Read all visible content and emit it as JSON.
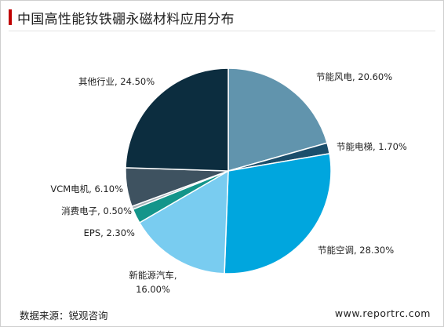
{
  "chart_data": {
    "type": "pie",
    "title": "中国高性能钕铁硼永磁材料应用分布",
    "start_angle_deg": 0,
    "direction": "clockwise",
    "legend": "none",
    "slices": [
      {
        "name": "节能风电",
        "value": 20.6,
        "label": "节能风电, 20.60%",
        "color": "#6194ad"
      },
      {
        "name": "节能电梯",
        "value": 1.7,
        "label": "节能电梯, 1.70%",
        "color": "#1b4e6b"
      },
      {
        "name": "节能空调",
        "value": 28.3,
        "label": "节能空调, 28.30%",
        "color": "#00a6de"
      },
      {
        "name": "新能源汽车",
        "value": 16.0,
        "label_lines": [
          "新能源汽车,",
          "16.00%"
        ],
        "color": "#79ccf0"
      },
      {
        "name": "EPS",
        "value": 2.3,
        "label": "EPS, 2.30%",
        "color": "#14958a"
      },
      {
        "name": "消费电子",
        "value": 0.5,
        "label": "消费电子, 0.50%",
        "color": "#a8b3b9"
      },
      {
        "name": "VCM电机",
        "value": 6.1,
        "label": "VCM电机, 6.10%",
        "color": "#3e5260"
      },
      {
        "name": "其他行业",
        "value": 24.5,
        "label": "其他行业, 24.50%",
        "color": "#0c2d3f"
      }
    ]
  },
  "footer": {
    "source": "数据来源：锐观咨询",
    "website": "www.reportrc.com"
  }
}
